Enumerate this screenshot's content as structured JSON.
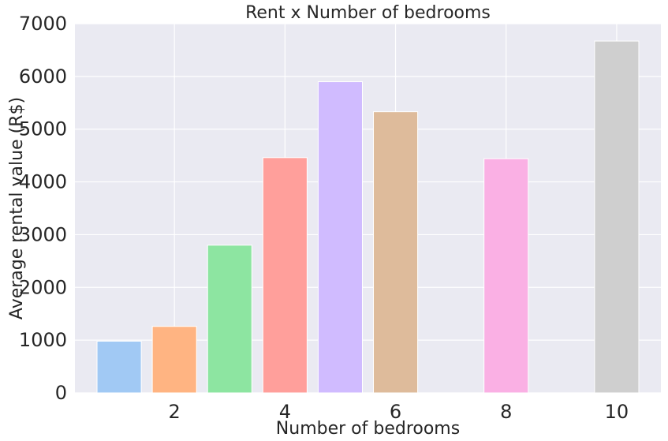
{
  "chart_data": {
    "type": "bar",
    "title": "Rent x Number of bedrooms",
    "xlabel": "Number of bedrooms",
    "ylabel": "Average rental value (R$)",
    "xlim": [
      0.2,
      10.8
    ],
    "ylim": [
      0,
      7000
    ],
    "xticks": [
      2,
      4,
      6,
      8,
      10
    ],
    "yticks": [
      0,
      1000,
      2000,
      3000,
      4000,
      5000,
      6000,
      7000
    ],
    "grid": true,
    "bars": [
      {
        "x": 1,
        "value": 980,
        "color": "#a1c9f4"
      },
      {
        "x": 2,
        "value": 1260,
        "color": "#ffb482"
      },
      {
        "x": 3,
        "value": 2800,
        "color": "#8de5a1"
      },
      {
        "x": 4,
        "value": 4460,
        "color": "#ff9f9b"
      },
      {
        "x": 5,
        "value": 5900,
        "color": "#d0bbff"
      },
      {
        "x": 6,
        "value": 5330,
        "color": "#debb9b"
      },
      {
        "x": 8,
        "value": 4440,
        "color": "#fab0e4"
      },
      {
        "x": 10,
        "value": 6670,
        "color": "#cfcfcf"
      }
    ]
  }
}
